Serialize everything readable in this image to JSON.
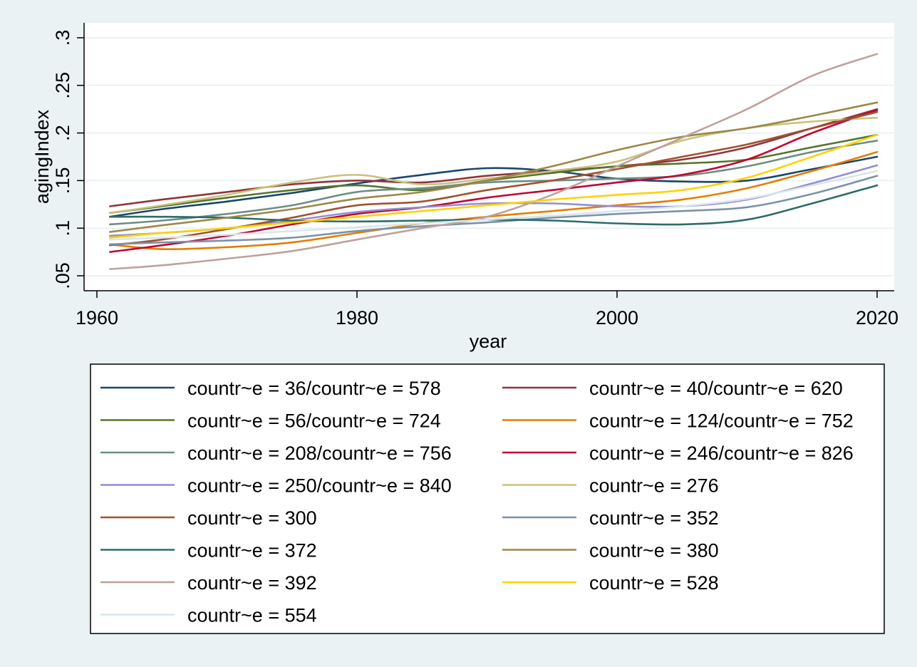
{
  "chart_data": {
    "type": "line",
    "xlabel": "year",
    "ylabel": "agingIndex",
    "xlim": [
      1960,
      2020
    ],
    "ylim": [
      0.05,
      0.3
    ],
    "x_ticks": [
      1960,
      1980,
      2000,
      2020
    ],
    "x_tick_labels": [
      "1960",
      "1980",
      "2000",
      "2020"
    ],
    "y_ticks": [
      0.05,
      0.1,
      0.15,
      0.2,
      0.25,
      0.3
    ],
    "y_tick_labels": [
      ".05",
      ".1",
      ".15",
      ".2",
      ".25",
      ".3"
    ],
    "grid": true,
    "legend_placement": "bottom",
    "x": [
      1961,
      1965,
      1970,
      1975,
      1980,
      1985,
      1990,
      1995,
      2000,
      2005,
      2010,
      2015,
      2020
    ],
    "series": [
      {
        "name": "countr~e = 36/countr~e = 578",
        "color": "#1a476f",
        "values": [
          0.112,
          0.12,
          0.128,
          0.137,
          0.147,
          0.156,
          0.163,
          0.16,
          0.152,
          0.149,
          0.15,
          0.162,
          0.175
        ]
      },
      {
        "name": "countr~e = 40/countr~e = 620",
        "color": "#90353b",
        "values": [
          0.123,
          0.13,
          0.138,
          0.146,
          0.15,
          0.148,
          0.155,
          0.16,
          0.165,
          0.172,
          0.185,
          0.205,
          0.225
        ]
      },
      {
        "name": "countr~e = 56/countr~e = 724",
        "color": "#55752f",
        "values": [
          0.116,
          0.123,
          0.132,
          0.14,
          0.145,
          0.14,
          0.15,
          0.158,
          0.165,
          0.168,
          0.172,
          0.185,
          0.198
        ]
      },
      {
        "name": "countr~e = 124/countr~e = 752",
        "color": "#e37e00",
        "values": [
          0.083,
          0.078,
          0.08,
          0.085,
          0.095,
          0.105,
          0.112,
          0.118,
          0.124,
          0.13,
          0.142,
          0.16,
          0.18
        ]
      },
      {
        "name": "countr~e = 208/countr~e = 756",
        "color": "#6e8e84",
        "values": [
          0.104,
          0.108,
          0.115,
          0.124,
          0.138,
          0.142,
          0.148,
          0.15,
          0.152,
          0.155,
          0.165,
          0.18,
          0.192
        ]
      },
      {
        "name": "countr~e = 246/countr~e = 826",
        "color": "#c10534",
        "values": [
          0.075,
          0.082,
          0.092,
          0.104,
          0.115,
          0.122,
          0.132,
          0.14,
          0.148,
          0.156,
          0.172,
          0.2,
          0.224
        ]
      },
      {
        "name": "countr~e = 250/countr~e = 840",
        "color": "#938dd2",
        "values": [
          0.092,
          0.095,
          0.1,
          0.108,
          0.117,
          0.122,
          0.126,
          0.126,
          0.123,
          0.123,
          0.13,
          0.147,
          0.166
        ]
      },
      {
        "name": "countr~e = 276",
        "color": "#cac27e",
        "values": [
          0.116,
          0.124,
          0.135,
          0.148,
          0.156,
          0.146,
          0.152,
          0.16,
          0.17,
          0.192,
          0.205,
          0.212,
          0.216
        ]
      },
      {
        "name": "countr~e = 300",
        "color": "#a0522d",
        "values": [
          0.082,
          0.088,
          0.099,
          0.111,
          0.124,
          0.128,
          0.14,
          0.15,
          0.162,
          0.175,
          0.188,
          0.205,
          0.222
        ]
      },
      {
        "name": "countr~e = 352",
        "color": "#7b92a8",
        "values": [
          0.083,
          0.085,
          0.087,
          0.09,
          0.097,
          0.102,
          0.106,
          0.111,
          0.115,
          0.118,
          0.122,
          0.136,
          0.155
        ]
      },
      {
        "name": "countr~e = 372",
        "color": "#2d6d66",
        "values": [
          0.112,
          0.112,
          0.111,
          0.108,
          0.107,
          0.108,
          0.109,
          0.108,
          0.105,
          0.104,
          0.109,
          0.126,
          0.145
        ]
      },
      {
        "name": "countr~e = 380",
        "color": "#9c8847",
        "values": [
          0.096,
          0.103,
          0.111,
          0.12,
          0.131,
          0.138,
          0.15,
          0.165,
          0.182,
          0.196,
          0.205,
          0.218,
          0.232
        ]
      },
      {
        "name": "countr~e = 392",
        "color": "#bfa19c",
        "values": [
          0.057,
          0.061,
          0.068,
          0.076,
          0.088,
          0.1,
          0.112,
          0.135,
          0.165,
          0.195,
          0.225,
          0.26,
          0.283
        ]
      },
      {
        "name": "countr~e = 528",
        "color": "#ffd200",
        "values": [
          0.09,
          0.095,
          0.1,
          0.106,
          0.112,
          0.118,
          0.124,
          0.13,
          0.135,
          0.14,
          0.153,
          0.175,
          0.198
        ]
      },
      {
        "name": "countr~e = 554",
        "color": "#d9e6eb",
        "values": [
          0.088,
          0.09,
          0.093,
          0.097,
          0.101,
          0.105,
          0.109,
          0.113,
          0.118,
          0.123,
          0.131,
          0.145,
          0.16
        ]
      }
    ]
  }
}
